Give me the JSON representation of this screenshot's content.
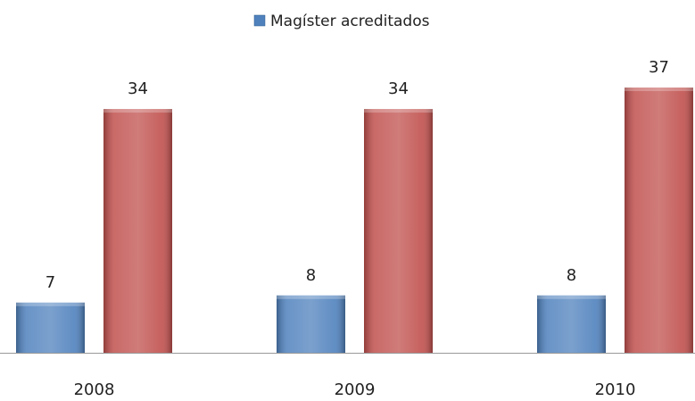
{
  "chart_data": {
    "type": "bar",
    "categories": [
      "2008",
      "2009",
      "2010"
    ],
    "series": [
      {
        "name": "Magíster acreditados",
        "color": "#4f81bd",
        "values": [
          7,
          8,
          8
        ]
      },
      {
        "color": "#c0504d",
        "values": [
          34,
          34,
          37
        ]
      }
    ]
  }
}
